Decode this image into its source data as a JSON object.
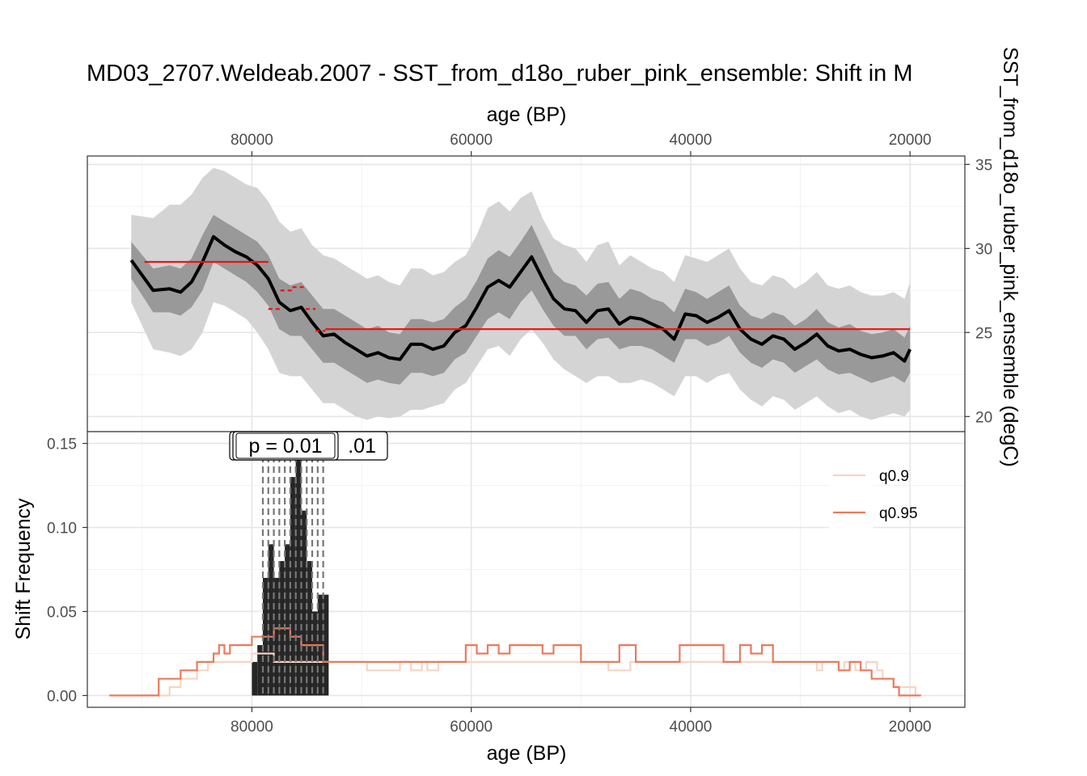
{
  "title": "MD03_2707.Weldeab.2007 - SST_from_d18o_ruber_pink_ensemble: Shift in M",
  "chart_data": [
    {
      "type": "line",
      "panel": "top",
      "xlabel": "age (BP)",
      "ylabel": "SST_from_d18o_ruber_pink_ensemble (degC)",
      "x_ticks": [
        80000,
        60000,
        40000,
        20000
      ],
      "x_tick_labels": [
        "80000",
        "60000",
        "40000",
        "20000"
      ],
      "y_ticks": [
        20,
        25,
        30,
        35
      ],
      "y_tick_labels": [
        "20",
        "25",
        "30",
        "35"
      ],
      "xlim": [
        95000,
        15000
      ],
      "ylim": [
        19.1,
        35.5
      ],
      "x_axis_position": "top",
      "y_axis_position": "right",
      "grid": true,
      "colors": {
        "median": "#000000",
        "band_inner": "#999999",
        "band_outer": "#d4d4d4",
        "shift_segments": "#ee1111"
      },
      "series": [
        {
          "role": "median",
          "x": [
            91000,
            89000,
            87500,
            86500,
            85500,
            84500,
            83500,
            82500,
            81500,
            80500,
            79500,
            78500,
            77500,
            76500,
            75500,
            74500,
            73500,
            72500,
            71500,
            70500,
            69500,
            68500,
            67500,
            66500,
            65500,
            64500,
            63500,
            62500,
            61500,
            60500,
            59500,
            58500,
            57500,
            56500,
            55500,
            54500,
            53500,
            52500,
            51500,
            50500,
            49500,
            48500,
            47500,
            46500,
            45500,
            44500,
            43500,
            42500,
            41500,
            40500,
            39500,
            38500,
            37500,
            36500,
            35500,
            34500,
            33500,
            32500,
            31500,
            30500,
            29500,
            28500,
            27500,
            26500,
            25500,
            24500,
            23500,
            22500,
            21500,
            20500,
            20000
          ],
          "y": [
            29.3,
            27.5,
            27.6,
            27.4,
            28.0,
            29.2,
            30.7,
            30.2,
            29.8,
            29.5,
            29.0,
            28.2,
            26.8,
            26.3,
            26.5,
            25.6,
            24.8,
            24.9,
            24.4,
            24.0,
            23.6,
            23.8,
            23.5,
            23.4,
            24.3,
            24.3,
            24.0,
            24.2,
            25.0,
            25.4,
            26.5,
            27.7,
            28.1,
            27.7,
            28.6,
            29.5,
            28.2,
            27.0,
            26.4,
            26.3,
            25.6,
            26.3,
            26.4,
            25.5,
            25.9,
            25.8,
            25.5,
            25.2,
            24.6,
            26.1,
            26.0,
            25.6,
            25.9,
            26.3,
            25.2,
            24.6,
            24.3,
            24.8,
            24.6,
            24.0,
            24.4,
            24.9,
            24.2,
            23.9,
            24.0,
            23.7,
            23.5,
            23.6,
            23.8,
            23.3,
            24.0
          ]
        },
        {
          "role": "inner_band",
          "x": [
            91000,
            89000,
            87500,
            86500,
            85500,
            84500,
            83500,
            82500,
            81500,
            80500,
            79500,
            78500,
            77500,
            76500,
            75500,
            74500,
            73500,
            72500,
            71500,
            70500,
            69500,
            68500,
            67500,
            66500,
            65500,
            64500,
            63500,
            62500,
            61500,
            60500,
            59500,
            58500,
            57500,
            56500,
            55500,
            54500,
            53500,
            52500,
            51500,
            50500,
            49500,
            48500,
            47500,
            46500,
            45500,
            44500,
            43500,
            42500,
            41500,
            40500,
            39500,
            38500,
            37500,
            36500,
            35500,
            34500,
            33500,
            32500,
            31500,
            30500,
            29500,
            28500,
            27500,
            26500,
            25500,
            24500,
            23500,
            22500,
            21500,
            20500,
            20000
          ],
          "lower": [
            28.2,
            26.2,
            26.2,
            26.0,
            26.5,
            27.5,
            29.2,
            28.8,
            28.4,
            28.0,
            27.4,
            26.6,
            25.2,
            24.8,
            24.8,
            24.0,
            23.2,
            23.2,
            22.8,
            22.4,
            22.0,
            22.2,
            22.0,
            21.9,
            22.6,
            22.6,
            22.4,
            22.6,
            23.4,
            23.8,
            24.8,
            25.8,
            26.2,
            25.8,
            26.8,
            27.5,
            26.4,
            25.4,
            24.8,
            24.8,
            24.0,
            24.6,
            24.7,
            24.0,
            24.2,
            24.2,
            24.0,
            23.6,
            23.2,
            24.6,
            24.6,
            24.2,
            24.4,
            24.8,
            23.8,
            23.2,
            22.9,
            23.4,
            23.2,
            22.6,
            23.0,
            23.4,
            22.8,
            22.5,
            22.6,
            22.3,
            22.0,
            22.2,
            22.4,
            22.0,
            22.6
          ],
          "upper": [
            30.4,
            28.8,
            29.0,
            28.8,
            29.4,
            30.8,
            32.0,
            31.6,
            31.2,
            30.8,
            30.4,
            29.6,
            28.2,
            27.8,
            28.0,
            27.2,
            26.4,
            26.4,
            26.0,
            25.6,
            25.2,
            25.4,
            25.0,
            24.9,
            25.8,
            25.8,
            25.6,
            25.8,
            26.5,
            27.0,
            28.1,
            29.4,
            29.9,
            29.5,
            30.4,
            31.4,
            30.0,
            28.6,
            28.0,
            27.8,
            27.2,
            27.9,
            28.0,
            27.0,
            27.6,
            27.4,
            27.0,
            26.8,
            26.2,
            27.6,
            27.4,
            27.0,
            27.4,
            27.8,
            26.6,
            26.0,
            25.8,
            26.2,
            26.0,
            25.4,
            25.8,
            26.4,
            25.6,
            25.3,
            25.5,
            25.1,
            24.9,
            25.0,
            25.2,
            24.7,
            25.4
          ]
        },
        {
          "role": "outer_band",
          "x": [
            91000,
            89000,
            87500,
            86500,
            85500,
            84500,
            83500,
            82500,
            81500,
            80500,
            79500,
            78500,
            77500,
            76500,
            75500,
            74500,
            73500,
            72500,
            71500,
            70500,
            69500,
            68500,
            67500,
            66500,
            65500,
            64500,
            63500,
            62500,
            61500,
            60500,
            59500,
            58500,
            57500,
            56500,
            55500,
            54500,
            53500,
            52500,
            51500,
            50500,
            49500,
            48500,
            47500,
            46500,
            45500,
            44500,
            43500,
            42500,
            41500,
            40500,
            39500,
            38500,
            37500,
            36500,
            35500,
            34500,
            33500,
            32500,
            31500,
            30500,
            29500,
            28500,
            27500,
            26500,
            25500,
            24500,
            23500,
            22500,
            21500,
            20500,
            20000
          ],
          "lower": [
            26.8,
            24.0,
            23.8,
            23.6,
            24.0,
            25.0,
            26.8,
            26.6,
            26.2,
            25.8,
            25.0,
            24.0,
            22.6,
            22.4,
            22.4,
            21.6,
            20.8,
            20.8,
            20.4,
            20.0,
            19.8,
            20.0,
            19.9,
            20.0,
            20.4,
            20.4,
            20.6,
            20.8,
            21.6,
            22.0,
            23.0,
            24.0,
            24.2,
            23.6,
            24.6,
            25.2,
            24.4,
            23.4,
            22.8,
            22.4,
            22.0,
            22.4,
            22.4,
            22.0,
            22.0,
            22.2,
            22.0,
            21.6,
            21.2,
            22.4,
            22.4,
            22.0,
            22.4,
            22.6,
            21.6,
            21.0,
            20.6,
            21.2,
            21.0,
            20.4,
            20.8,
            21.2,
            20.6,
            20.2,
            20.4,
            20.0,
            19.8,
            20.0,
            20.2,
            20.0,
            20.4
          ],
          "upper": [
            32.0,
            31.8,
            32.6,
            32.6,
            33.2,
            34.2,
            34.8,
            34.6,
            34.2,
            33.8,
            33.6,
            32.8,
            31.6,
            31.0,
            31.2,
            30.2,
            29.6,
            29.4,
            29.0,
            28.6,
            28.2,
            28.4,
            28.0,
            27.8,
            28.8,
            28.8,
            28.4,
            28.6,
            29.2,
            29.6,
            30.8,
            32.4,
            32.8,
            32.2,
            33.0,
            33.4,
            31.8,
            30.6,
            30.2,
            30.0,
            29.2,
            30.2,
            30.4,
            29.0,
            29.6,
            29.2,
            28.8,
            28.6,
            28.0,
            29.6,
            29.4,
            29.2,
            29.6,
            30.0,
            28.8,
            28.0,
            27.8,
            28.4,
            28.2,
            27.6,
            28.0,
            28.6,
            27.8,
            27.6,
            27.8,
            27.4,
            27.2,
            27.2,
            27.4,
            27.0,
            28.0
          ]
        },
        {
          "role": "shift_segments",
          "segments": [
            {
              "x0": 89800,
              "x1": 78500,
              "y": 29.2
            },
            {
              "x0": 78500,
              "x1": 77400,
              "y": 26.4
            },
            {
              "x0": 77400,
              "x1": 76300,
              "y": 27.5
            },
            {
              "x0": 76300,
              "x1": 75100,
              "y": 27.7
            },
            {
              "x0": 75100,
              "x1": 74200,
              "y": 26.4
            },
            {
              "x0": 74200,
              "x1": 73300,
              "y": 25.1
            },
            {
              "x0": 73300,
              "x1": 20000,
              "y": 25.2
            }
          ]
        }
      ]
    },
    {
      "type": "bar",
      "panel": "bottom",
      "xlabel": "age (BP)",
      "ylabel": "Shift Frequency",
      "x_ticks": [
        80000,
        60000,
        40000,
        20000
      ],
      "x_tick_labels": [
        "80000",
        "60000",
        "40000",
        "20000"
      ],
      "y_ticks": [
        0.0,
        0.05,
        0.1,
        0.15
      ],
      "y_tick_labels": [
        "0.00",
        "0.05",
        "0.10",
        "0.15"
      ],
      "xlim": [
        95000,
        15000
      ],
      "ylim": [
        -0.007,
        0.157
      ],
      "grid": true,
      "legend_position": "right",
      "annotations": [
        "p = 0.01",
        ".01"
      ],
      "colors": {
        "bars": "#262626",
        "q0_9": "#f7d4c4",
        "q0_95": "#ec7a5c",
        "dashed": "#777777"
      },
      "bars": {
        "bin_width": 500,
        "x": [
          79750,
          79250,
          78750,
          78250,
          77750,
          77250,
          76750,
          76250,
          75750,
          75250,
          74750,
          74250,
          73750,
          73250
        ],
        "values": [
          0.02,
          0.03,
          0.07,
          0.09,
          0.07,
          0.08,
          0.09,
          0.13,
          0.14,
          0.11,
          0.08,
          0.05,
          0.06,
          0.06
        ]
      },
      "dashed_lines_x": [
        79000,
        78500,
        78000,
        77500,
        77000,
        76500,
        76000,
        75500,
        75000,
        74500,
        74000,
        73500
      ],
      "series": [
        {
          "name": "q0.9",
          "step_x": [
            90000,
            87500,
            86500,
            85000,
            84000,
            83500,
            80000,
            78000,
            75500,
            72000,
            71000,
            69500,
            68000,
            66500,
            65500,
            64500,
            64000,
            63000,
            62000,
            61500,
            60500,
            59500,
            58500,
            57500,
            57000,
            56500,
            55500,
            54000,
            53500,
            52000,
            50000,
            48000,
            47500,
            46000,
            45500,
            43500,
            42500,
            41000,
            39500,
            38000,
            36500,
            35000,
            34500,
            33500,
            32500,
            31000,
            29500,
            28500,
            28000,
            26500,
            26000,
            25000,
            24000,
            23000,
            22500,
            21500,
            20500,
            19500
          ],
          "step_y": [
            0,
            0.005,
            0.01,
            0.015,
            0.02,
            0.02,
            0.025,
            0.02,
            0.02,
            0.02,
            0.02,
            0.015,
            0.015,
            0.02,
            0.015,
            0.02,
            0.015,
            0.02,
            0.02,
            0.02,
            0.02,
            0.02,
            0.02,
            0.02,
            0.02,
            0.02,
            0.02,
            0.02,
            0.02,
            0.02,
            0.02,
            0.02,
            0.015,
            0.015,
            0.02,
            0.02,
            0.02,
            0.02,
            0.02,
            0.02,
            0.02,
            0.02,
            0.02,
            0.02,
            0.02,
            0.02,
            0.02,
            0.015,
            0.02,
            0.015,
            0.02,
            0.015,
            0.02,
            0.015,
            0.01,
            0.005,
            0.005,
            0
          ]
        },
        {
          "name": "q0.95",
          "step_x": [
            93000,
            88500,
            86500,
            85000,
            83500,
            83000,
            82500,
            82000,
            80000,
            78000,
            76500,
            75500,
            73500,
            72000,
            70500,
            67500,
            65000,
            63000,
            61000,
            60500,
            59500,
            58500,
            57500,
            56500,
            55500,
            54500,
            53500,
            52500,
            50000,
            48000,
            46500,
            45000,
            43500,
            42500,
            41000,
            40000,
            38500,
            37000,
            35500,
            34500,
            33500,
            32500,
            30500,
            29000,
            28000,
            26500,
            25500,
            24500,
            23500,
            22500,
            21500,
            21000,
            20000,
            19000
          ],
          "step_y": [
            0,
            0.01,
            0.015,
            0.02,
            0.025,
            0.03,
            0.025,
            0.03,
            0.035,
            0.04,
            0.035,
            0.03,
            0.02,
            0.02,
            0.02,
            0.02,
            0.02,
            0.02,
            0.02,
            0.03,
            0.025,
            0.03,
            0.025,
            0.03,
            0.03,
            0.03,
            0.025,
            0.03,
            0.02,
            0.02,
            0.03,
            0.02,
            0.02,
            0.02,
            0.03,
            0.03,
            0.03,
            0.02,
            0.03,
            0.025,
            0.03,
            0.02,
            0.02,
            0.02,
            0.02,
            0.015,
            0.02,
            0.015,
            0.01,
            0.01,
            0.005,
            0.0,
            0.0,
            0
          ]
        }
      ]
    }
  ]
}
